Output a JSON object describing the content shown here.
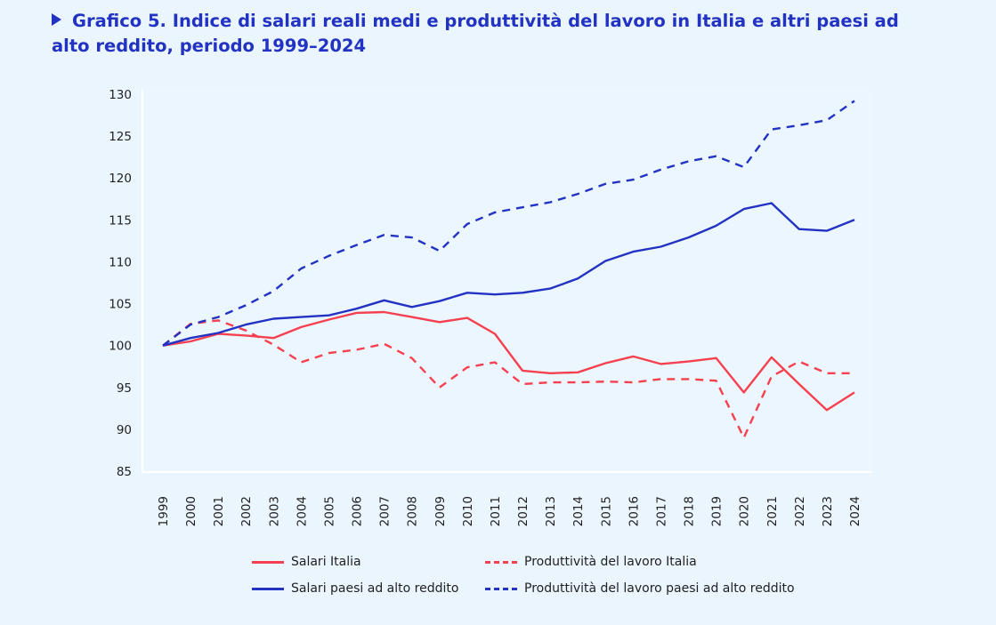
{
  "title": "Grafico 5. Indice di salari reali medi e produttività del lavoro in Italia e altri paesi ad alto reddito, periodo 1999–2024",
  "chart_data": {
    "type": "line",
    "title": "Grafico 5. Indice di salari reali medi e produttività del lavoro in Italia e altri paesi ad alto reddito, periodo 1999–2024",
    "xlabel": "",
    "ylabel": "",
    "ylim": [
      85,
      130
    ],
    "yticks": [
      85,
      90,
      95,
      100,
      105,
      110,
      115,
      120,
      125,
      130
    ],
    "grid": false,
    "legend_position": "bottom",
    "x": [
      "1999",
      "2000",
      "2001",
      "2002",
      "2003",
      "2004",
      "2005",
      "2006",
      "2007",
      "2008",
      "2009",
      "2010",
      "2011",
      "2012",
      "2013",
      "2014",
      "2015",
      "2016",
      "2017",
      "2018",
      "2019",
      "2020",
      "2021",
      "2022",
      "2023",
      "2024"
    ],
    "series": [
      {
        "name": "Salari Italia",
        "color": "#f5414f",
        "style": "solid",
        "values": [
          100,
          100.5,
          101.4,
          101.2,
          100.9,
          102.2,
          103.1,
          103.9,
          104.0,
          103.4,
          102.8,
          103.3,
          101.4,
          97.0,
          96.7,
          96.8,
          97.9,
          98.7,
          97.8,
          98.1,
          98.5,
          94.4,
          98.6,
          95.4,
          92.3,
          94.4
        ]
      },
      {
        "name": "Produttività del lavoro Italia",
        "color": "#f5414f",
        "style": "dashed",
        "values": [
          100,
          102.6,
          103.0,
          101.8,
          100.1,
          98.0,
          99.1,
          99.5,
          100.2,
          98.5,
          95.0,
          97.4,
          98.0,
          95.4,
          95.6,
          95.6,
          95.7,
          95.6,
          96.0,
          96.0,
          95.8,
          89.0,
          96.3,
          98.1,
          96.7,
          96.7
        ]
      },
      {
        "name": "Salari paesi ad alto reddito",
        "color": "#2232c3",
        "style": "solid",
        "values": [
          100,
          100.9,
          101.5,
          102.5,
          103.2,
          103.4,
          103.6,
          104.4,
          105.4,
          104.6,
          105.3,
          106.3,
          106.1,
          106.3,
          106.8,
          108.0,
          110.1,
          111.2,
          111.8,
          112.9,
          114.3,
          116.3,
          117.0,
          113.9,
          113.7,
          115.0
        ]
      },
      {
        "name": "Produttività del lavoro paesi ad alto reddito",
        "color": "#2232c3",
        "style": "dashed",
        "values": [
          100,
          102.5,
          103.4,
          104.8,
          106.5,
          109.2,
          110.7,
          112.0,
          113.2,
          112.9,
          111.3,
          114.5,
          115.9,
          116.5,
          117.1,
          118.1,
          119.3,
          119.8,
          121.0,
          122.0,
          122.6,
          121.3,
          125.8,
          126.3,
          126.9,
          129.2
        ]
      }
    ]
  }
}
